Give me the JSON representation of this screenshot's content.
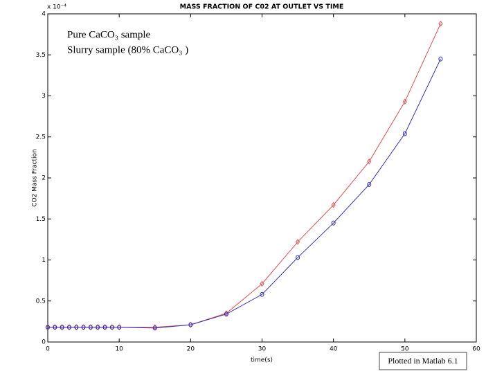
{
  "chart_data": {
    "type": "line",
    "title": "MASS FRACTION OF C02 AT OUTLET VS TIME",
    "y_multiplier": "x 10⁻⁴",
    "xlabel": "time(s)",
    "ylabel": "CO2 Mass Fraction",
    "note": "Plotted in Matlab 6.1",
    "x": [
      0,
      1,
      2,
      3,
      4,
      5,
      6,
      7,
      8,
      9,
      10,
      15,
      20,
      25,
      30,
      35,
      40,
      45,
      50,
      55
    ],
    "series": [
      {
        "name": "Pure CaCO₃ sample",
        "color": "#e05050",
        "label_color": "#c00000",
        "marker": "diamond",
        "values": [
          0.18,
          0.18,
          0.18,
          0.18,
          0.18,
          0.18,
          0.18,
          0.18,
          0.18,
          0.18,
          0.18,
          0.18,
          0.21,
          0.35,
          0.71,
          1.22,
          1.67,
          2.2,
          2.93,
          3.88
        ]
      },
      {
        "name": "Slurry sample (80% CaCO₃ )",
        "color": "#3030c0",
        "label_color": "#1f4e79",
        "marker": "circle",
        "values": [
          0.18,
          0.18,
          0.18,
          0.18,
          0.18,
          0.18,
          0.18,
          0.18,
          0.18,
          0.18,
          0.18,
          0.17,
          0.21,
          0.34,
          0.58,
          1.03,
          1.45,
          1.92,
          2.54,
          3.45
        ]
      }
    ],
    "xlim": [
      0,
      60
    ],
    "xticks": [
      0,
      10,
      20,
      30,
      40,
      50,
      60
    ],
    "ylim": [
      0,
      4
    ],
    "yticks": [
      0,
      0.5,
      1,
      1.5,
      2,
      2.5,
      3,
      3.5,
      4
    ],
    "grid": false
  }
}
